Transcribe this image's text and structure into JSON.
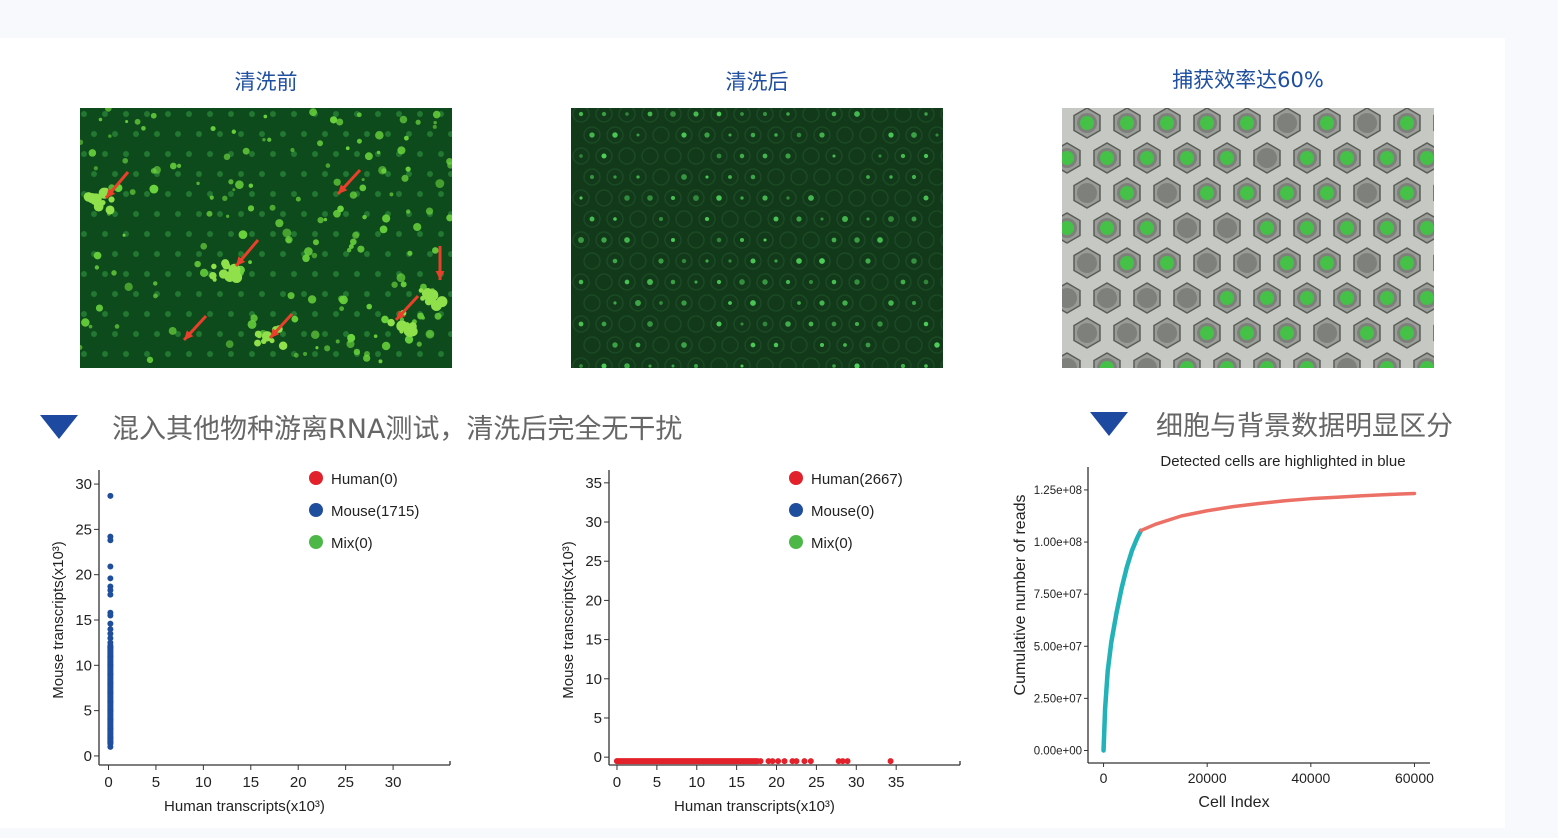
{
  "images": [
    {
      "title": "清洗前",
      "kind": "fluorescence-before-wash"
    },
    {
      "title": "清洗后",
      "kind": "fluorescence-after-wash"
    },
    {
      "title": "捕获效率达60%",
      "kind": "brightfield-capture"
    }
  ],
  "sections": {
    "left_heading": "混入其他物种游离RNA测试，清洗后完全无干扰",
    "right_heading": "细胞与背景数据明显区分"
  },
  "colors": {
    "accent_blue": "#1d4aa0",
    "human_red": "#e3212b",
    "mouse_blue": "#1f4e9c",
    "mix_green": "#4db848",
    "cell_teal": "#22b2b8",
    "background_salmon": "#ec7066"
  },
  "chart_data": [
    {
      "type": "scatter",
      "title": "",
      "xlabel": "Human transcripts(x10³)",
      "ylabel": "Mouse transcripts(x10³)",
      "xlim": [
        -1,
        36
      ],
      "ylim": [
        -1,
        31
      ],
      "xticks": [
        "0",
        "5",
        "10",
        "15",
        "20",
        "25",
        "30"
      ],
      "yticks": [
        "0",
        "5",
        "10",
        "15",
        "20",
        "25",
        "30"
      ],
      "legend": [
        {
          "label": "Human(0)",
          "color": "#e3212b"
        },
        {
          "label": "Mouse(1715)",
          "color": "#1f4e9c"
        },
        {
          "label": "Mix(0)",
          "color": "#4db848"
        }
      ],
      "series": [
        {
          "name": "Mouse",
          "x_constant": 0.2,
          "y_points": [
            1,
            1.5,
            2,
            3,
            4,
            5,
            6,
            7,
            8,
            9,
            10,
            11,
            12,
            12.5,
            13,
            13.5,
            14,
            14.6,
            15.5,
            15.8,
            17.8,
            18.3,
            18.7,
            19.6,
            20.9,
            23.8,
            24.2,
            28.7
          ]
        }
      ],
      "legend_position": "top-right"
    },
    {
      "type": "scatter",
      "title": "",
      "xlabel": "Human transcripts(x10³)",
      "ylabel": "Mouse transcripts(x10³)",
      "xlim": [
        -1,
        43
      ],
      "ylim": [
        -1,
        36
      ],
      "xticks": [
        "0",
        "5",
        "10",
        "15",
        "20",
        "25",
        "30",
        "35"
      ],
      "yticks": [
        "0",
        "5",
        "10",
        "15",
        "20",
        "25",
        "30",
        "35"
      ],
      "legend": [
        {
          "label": "Human(2667)",
          "color": "#e3212b"
        },
        {
          "label": "Mouse(0)",
          "color": "#1f4e9c"
        },
        {
          "label": "Mix(0)",
          "color": "#4db848"
        }
      ],
      "series": [
        {
          "name": "Human",
          "y_constant": -0.5,
          "x_points": [
            0,
            18,
            19,
            19.5,
            20.2,
            21,
            22,
            22.5,
            23.5,
            24.3,
            27.8,
            28.3,
            28.9,
            34.3
          ]
        }
      ],
      "legend_position": "top-right"
    },
    {
      "type": "line",
      "title": "Detected cells are highlighted in blue",
      "xlabel": "Cell Index",
      "ylabel": "Cumulative number of reads",
      "xticks": [
        "0",
        "20000",
        "40000",
        "60000"
      ],
      "yticks": [
        "0.00e+00",
        "2.50e+07",
        "5.00e+07",
        "7.50e+07",
        "1.00e+08",
        "1.25e+08"
      ],
      "xlim": [
        -3000,
        63000
      ],
      "ylim": [
        -6000000,
        136000000
      ],
      "series": [
        {
          "name": "Detected cells",
          "color": "#22b2b8",
          "x": [
            0,
            300,
            800,
            1500,
            2500,
            3500,
            4500,
            5500,
            6500,
            7200
          ],
          "y": [
            0,
            20000000,
            38000000,
            52000000,
            66000000,
            78000000,
            88000000,
            96000000,
            102000000,
            105500000
          ]
        },
        {
          "name": "Background",
          "color": "#ec7066",
          "x": [
            7200,
            10000,
            15000,
            20000,
            25000,
            30000,
            35000,
            40000,
            45000,
            50000,
            55000,
            60000
          ],
          "y": [
            105500000,
            108500000,
            112500000,
            115000000,
            117000000,
            118500000,
            119800000,
            120800000,
            121500000,
            122200000,
            122800000,
            123300000
          ]
        }
      ]
    }
  ]
}
